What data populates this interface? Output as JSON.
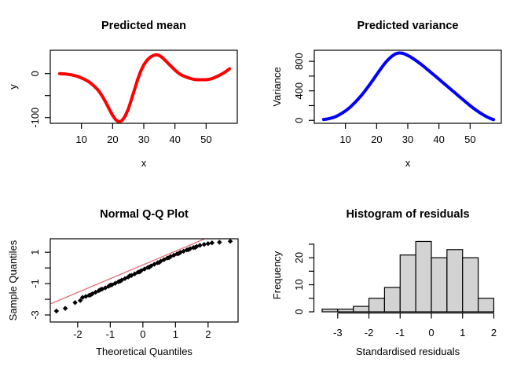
{
  "figure": {
    "background": "#ffffff",
    "text_color": "#000000"
  },
  "chart_data": [
    {
      "id": "predicted-mean",
      "type": "line",
      "title": "Predicted mean",
      "xlabel": "x",
      "ylabel": "y",
      "line_color": "#ff0000",
      "line_width": 4,
      "grid": false,
      "legend": null,
      "xlim": [
        0,
        60
      ],
      "ylim": [
        -113,
        53
      ],
      "x_ticks": [
        10,
        20,
        30,
        40,
        50
      ],
      "x_tick_labels": [
        "10",
        "20",
        "30",
        "40",
        "50"
      ],
      "y_ticks": [
        0,
        -50,
        -100
      ],
      "y_tick_labels": [
        "0",
        "",
        "-100"
      ],
      "points": [
        [
          3,
          0
        ],
        [
          4,
          -0.5
        ],
        [
          5,
          -1
        ],
        [
          6,
          -2
        ],
        [
          7,
          -3
        ],
        [
          8,
          -5
        ],
        [
          9,
          -7
        ],
        [
          10,
          -10
        ],
        [
          11,
          -13
        ],
        [
          12,
          -17
        ],
        [
          13,
          -22
        ],
        [
          14,
          -28
        ],
        [
          15,
          -35
        ],
        [
          16,
          -44
        ],
        [
          17,
          -55
        ],
        [
          18,
          -68
        ],
        [
          19,
          -82
        ],
        [
          20,
          -95
        ],
        [
          21,
          -105
        ],
        [
          22,
          -110
        ],
        [
          23,
          -107
        ],
        [
          24,
          -97
        ],
        [
          25,
          -81
        ],
        [
          26,
          -60
        ],
        [
          27,
          -37
        ],
        [
          28,
          -14
        ],
        [
          29,
          5
        ],
        [
          30,
          20
        ],
        [
          31,
          30
        ],
        [
          32,
          37
        ],
        [
          33,
          41
        ],
        [
          34,
          43
        ],
        [
          35,
          41
        ],
        [
          36,
          36
        ],
        [
          37,
          29
        ],
        [
          38,
          22
        ],
        [
          39,
          15
        ],
        [
          40,
          8
        ],
        [
          41,
          2
        ],
        [
          42,
          -3
        ],
        [
          43,
          -6
        ],
        [
          44,
          -9
        ],
        [
          45,
          -11
        ],
        [
          46,
          -13
        ],
        [
          47,
          -14
        ],
        [
          48,
          -14
        ],
        [
          49,
          -14
        ],
        [
          50,
          -14
        ],
        [
          51,
          -13
        ],
        [
          52,
          -11
        ],
        [
          53,
          -8
        ],
        [
          54,
          -5
        ],
        [
          55,
          -1
        ],
        [
          56,
          3
        ],
        [
          57,
          8
        ],
        [
          57.5,
          11
        ]
      ]
    },
    {
      "id": "predicted-variance",
      "type": "line",
      "title": "Predicted variance",
      "xlabel": "x",
      "ylabel": "Variance",
      "line_color": "#0000ff",
      "line_width": 4,
      "grid": false,
      "legend": null,
      "xlim": [
        0,
        60
      ],
      "ylim": [
        -40,
        950
      ],
      "x_ticks": [
        10,
        20,
        30,
        40,
        50
      ],
      "x_tick_labels": [
        "10",
        "20",
        "30",
        "40",
        "50"
      ],
      "y_ticks": [
        0,
        200,
        400,
        600,
        800
      ],
      "y_tick_labels": [
        "0",
        "",
        "400",
        "",
        "800"
      ],
      "points": [
        [
          3,
          12
        ],
        [
          4,
          18
        ],
        [
          5,
          26
        ],
        [
          6,
          38
        ],
        [
          7,
          54
        ],
        [
          8,
          75
        ],
        [
          9,
          100
        ],
        [
          10,
          128
        ],
        [
          11,
          160
        ],
        [
          12,
          198
        ],
        [
          13,
          240
        ],
        [
          14,
          285
        ],
        [
          15,
          333
        ],
        [
          16,
          385
        ],
        [
          17,
          440
        ],
        [
          18,
          498
        ],
        [
          19,
          558
        ],
        [
          20,
          618
        ],
        [
          21,
          680
        ],
        [
          22,
          738
        ],
        [
          23,
          790
        ],
        [
          24,
          835
        ],
        [
          25,
          872
        ],
        [
          26,
          900
        ],
        [
          27,
          913
        ],
        [
          28,
          912
        ],
        [
          29,
          900
        ],
        [
          30,
          880
        ],
        [
          31,
          856
        ],
        [
          32,
          830
        ],
        [
          33,
          800
        ],
        [
          34,
          768
        ],
        [
          35,
          735
        ],
        [
          36,
          700
        ],
        [
          37,
          665
        ],
        [
          38,
          630
        ],
        [
          39,
          594
        ],
        [
          40,
          558
        ],
        [
          41,
          522
        ],
        [
          42,
          486
        ],
        [
          43,
          450
        ],
        [
          44,
          414
        ],
        [
          45,
          378
        ],
        [
          46,
          342
        ],
        [
          47,
          306
        ],
        [
          48,
          270
        ],
        [
          49,
          235
        ],
        [
          50,
          200
        ],
        [
          51,
          167
        ],
        [
          52,
          136
        ],
        [
          53,
          107
        ],
        [
          54,
          80
        ],
        [
          55,
          56
        ],
        [
          56,
          35
        ],
        [
          57,
          18
        ],
        [
          57.5,
          10
        ]
      ]
    },
    {
      "id": "normal-qq-plot",
      "type": "scatter",
      "title": "Normal Q-Q Plot",
      "xlabel": "Theoretical Quantiles",
      "ylabel": "Sample Quantiles",
      "marker": "diamond",
      "point_color": "#000000",
      "grid": false,
      "legend": null,
      "xlim": [
        -2.84,
        2.92
      ],
      "ylim": [
        -3.45,
        1.86
      ],
      "x_ticks": [
        -2,
        -1,
        0,
        1,
        2
      ],
      "x_tick_labels": [
        "-2",
        "-1",
        "0",
        "1",
        "2"
      ],
      "y_ticks": [
        1,
        0,
        -1,
        -2,
        -3
      ],
      "y_tick_labels": [
        "1",
        "",
        "-1",
        "",
        "-3"
      ],
      "ref_line": {
        "color": "#e46976",
        "width": 1.3,
        "from": [
          -2.84,
          -2.3
        ],
        "to": [
          1.9,
          1.86
        ]
      },
      "points": [
        [
          -2.65,
          -2.75
        ],
        [
          -2.38,
          -2.58
        ],
        [
          -2.08,
          -2.21
        ],
        [
          -1.92,
          -2.08
        ],
        [
          -1.85,
          -1.88
        ],
        [
          -1.75,
          -1.82
        ],
        [
          -1.65,
          -1.75
        ],
        [
          -1.55,
          -1.65
        ],
        [
          -1.45,
          -1.55
        ],
        [
          -1.35,
          -1.45
        ],
        [
          -1.25,
          -1.35
        ],
        [
          -1.15,
          -1.27
        ],
        [
          -1.05,
          -1.17
        ],
        [
          -0.95,
          -1.08
        ],
        [
          -0.85,
          -0.98
        ],
        [
          -0.75,
          -0.88
        ],
        [
          -0.65,
          -0.78
        ],
        [
          -0.55,
          -0.68
        ],
        [
          -0.45,
          -0.58
        ],
        [
          -0.35,
          -0.48
        ],
        [
          -0.25,
          -0.38
        ],
        [
          -0.15,
          -0.27
        ],
        [
          -0.05,
          -0.17
        ],
        [
          0.05,
          -0.07
        ],
        [
          0.15,
          0.03
        ],
        [
          0.25,
          0.13
        ],
        [
          0.35,
          0.23
        ],
        [
          0.45,
          0.33
        ],
        [
          0.55,
          0.43
        ],
        [
          0.65,
          0.53
        ],
        [
          0.75,
          0.63
        ],
        [
          0.85,
          0.72
        ],
        [
          0.95,
          0.81
        ],
        [
          1.05,
          0.9
        ],
        [
          1.15,
          0.99
        ],
        [
          1.25,
          1.07
        ],
        [
          1.35,
          1.15
        ],
        [
          1.45,
          1.23
        ],
        [
          1.55,
          1.3
        ],
        [
          1.65,
          1.37
        ],
        [
          1.75,
          1.44
        ],
        [
          1.88,
          1.5
        ],
        [
          2.0,
          1.55
        ],
        [
          2.12,
          1.6
        ],
        [
          2.35,
          1.64
        ],
        [
          2.68,
          1.7
        ],
        [
          -1.6,
          -1.72
        ],
        [
          -1.3,
          -1.38
        ],
        [
          -1.0,
          -1.1
        ],
        [
          -0.7,
          -0.85
        ],
        [
          -0.4,
          -0.5
        ],
        [
          -0.1,
          -0.25
        ],
        [
          0.2,
          0.05
        ],
        [
          0.5,
          0.35
        ],
        [
          0.8,
          0.65
        ],
        [
          1.1,
          0.92
        ],
        [
          1.4,
          1.16
        ],
        [
          1.6,
          1.3
        ]
      ]
    },
    {
      "id": "histogram-of-residuals",
      "type": "bar",
      "title": "Histogram of residuals",
      "xlabel": "Standardised residuals",
      "ylabel": "Frequency",
      "bar_fill": "#d3d3d3",
      "bar_stroke": "#000000",
      "grid": false,
      "legend": null,
      "xlim": [
        -3.75,
        2.24
      ],
      "ylim": [
        0,
        27
      ],
      "x_ticks": [
        -3,
        -2,
        -1,
        0,
        1,
        2
      ],
      "x_tick_labels": [
        "-3",
        "-2",
        "-1",
        "0",
        "1",
        "2"
      ],
      "y_ticks": [
        0,
        5,
        10,
        15,
        20,
        25
      ],
      "y_tick_labels": [
        "0",
        "",
        "10",
        "",
        "20",
        ""
      ],
      "breaks": [
        -3.5,
        -3,
        -2.5,
        -2,
        -1.5,
        -1,
        -0.5,
        0,
        0.5,
        1,
        1.5,
        2
      ],
      "counts": [
        1,
        1,
        2,
        5,
        9,
        21,
        26,
        20,
        23,
        20,
        5
      ]
    }
  ]
}
